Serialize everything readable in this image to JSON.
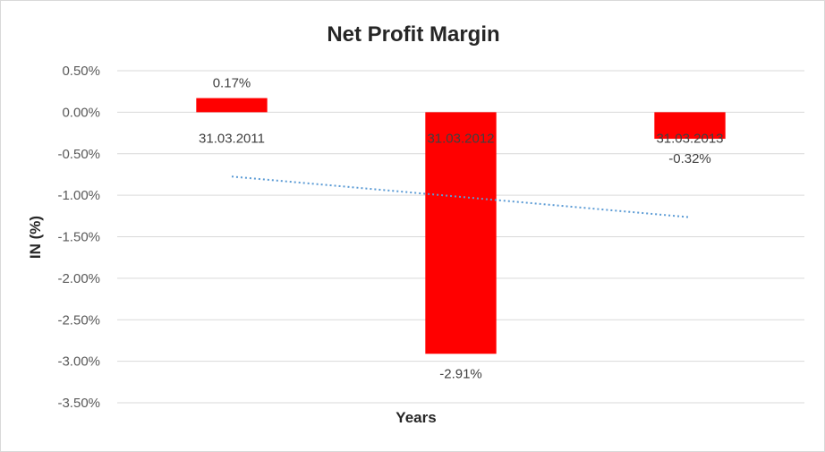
{
  "chart_data": {
    "type": "bar",
    "title": "Net Profit Margin",
    "xlabel": "Years",
    "ylabel": "IN (%)",
    "categories": [
      "31.03.2011",
      "31.03.2012",
      "31.03.2013"
    ],
    "values": [
      0.17,
      -2.91,
      -0.32
    ],
    "data_labels": [
      "0.17%",
      "-2.91%",
      "-0.32%"
    ],
    "ylim": [
      -3.5,
      0.5
    ],
    "yticks": [
      0.5,
      0,
      -0.5,
      -1,
      -1.5,
      -2,
      -2.5,
      -3,
      -3.5
    ],
    "ytick_labels": [
      "0.50%",
      "0.00%",
      "-0.50%",
      "-1.00%",
      "-1.50%",
      "-2.00%",
      "-2.50%",
      "-3.00%",
      "-3.50%"
    ],
    "trendline": {
      "type": "linear",
      "style": "dotted"
    },
    "grid": true,
    "legend": "none",
    "colors": {
      "bar": "#ff0000",
      "trendline": "#5b9bd5",
      "grid": "#d9d9d9"
    }
  }
}
